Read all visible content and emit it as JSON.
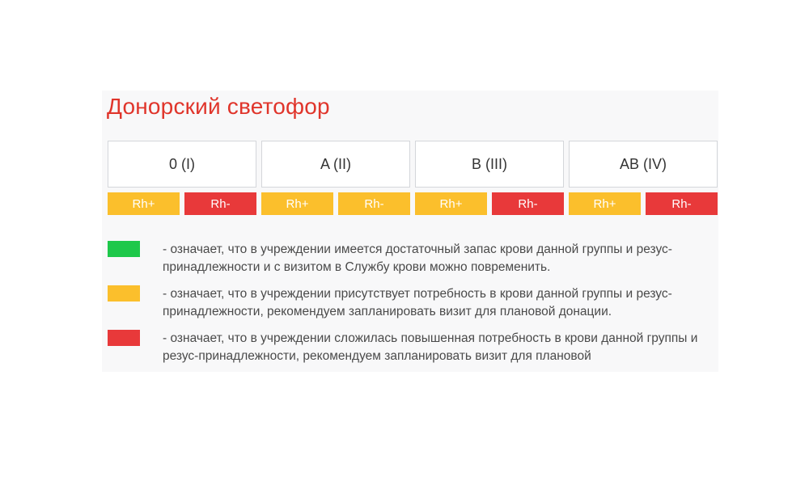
{
  "title": "Донорский светофор",
  "colors": {
    "title": "#e0352b",
    "green": "#1ec84a",
    "yellow": "#fbbf2c",
    "red": "#e8393a"
  },
  "groups": [
    {
      "name": "0 (I)",
      "rh_pos": {
        "label": "Rh+",
        "status": "yellow",
        "color": "#fbbf2c"
      },
      "rh_neg": {
        "label": "Rh-",
        "status": "red",
        "color": "#e8393a"
      }
    },
    {
      "name": "A (II)",
      "rh_pos": {
        "label": "Rh+",
        "status": "yellow",
        "color": "#fbbf2c"
      },
      "rh_neg": {
        "label": "Rh-",
        "status": "yellow",
        "color": "#fbbf2c"
      }
    },
    {
      "name": "B (III)",
      "rh_pos": {
        "label": "Rh+",
        "status": "yellow",
        "color": "#fbbf2c"
      },
      "rh_neg": {
        "label": "Rh-",
        "status": "red",
        "color": "#e8393a"
      }
    },
    {
      "name": "AB (IV)",
      "rh_pos": {
        "label": "Rh+",
        "status": "yellow",
        "color": "#fbbf2c"
      },
      "rh_neg": {
        "label": "Rh-",
        "status": "red",
        "color": "#e8393a"
      }
    }
  ],
  "legend": [
    {
      "color": "#1ec84a",
      "text": "- означает, что в учреждении имеется достаточный запас крови данной группы и резус-принадлежности и с визитом в Службу крови можно повременить."
    },
    {
      "color": "#fbbf2c",
      "text": "- означает, что в учреждении присутствует потребность в крови данной группы и резус-принадлежности, рекомендуем запланировать визит для плановой донации."
    },
    {
      "color": "#e8393a",
      "text": "- означает, что в учреждении сложилась повышенная потребность в крови данной группы и резус-принадлежности, рекомендуем запланировать визит для плановой"
    }
  ]
}
